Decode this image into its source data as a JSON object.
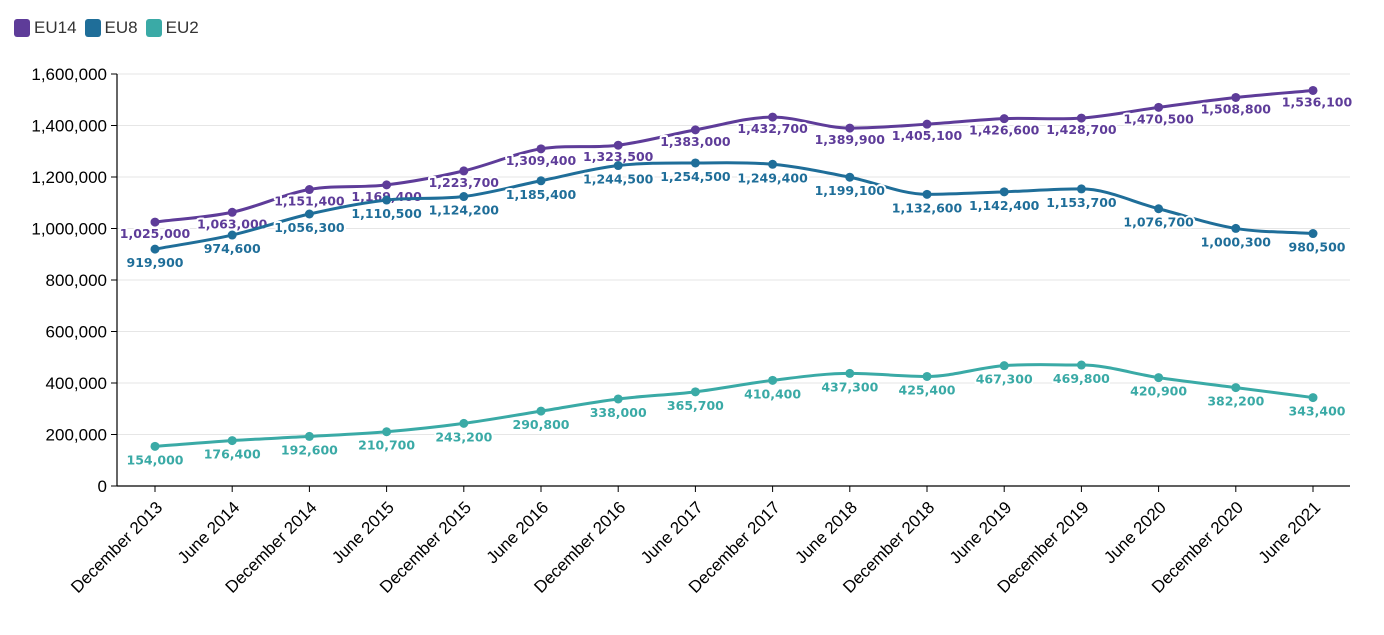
{
  "chart_data": {
    "type": "line",
    "categories": [
      "December 2013",
      "June 2014",
      "December 2014",
      "June 2015",
      "December 2015",
      "June 2016",
      "December 2016",
      "June 2017",
      "December 2017",
      "June 2018",
      "December 2018",
      "June 2019",
      "December 2019",
      "June 2020",
      "December 2020",
      "June 2021"
    ],
    "series": [
      {
        "name": "EU14",
        "color": "#5e3c99",
        "values": [
          1025000,
          1063000,
          1151400,
          1169400,
          1223700,
          1309400,
          1323500,
          1383000,
          1432700,
          1389900,
          1405100,
          1426600,
          1428700,
          1470500,
          1508800,
          1536100
        ],
        "labels": [
          "1,025,000",
          "1,063,000",
          "1,151,400",
          "1,169,400",
          "1,223,700",
          "1,309,400",
          "1,323,500",
          "1,383,000",
          "1,432,700",
          "1,389,900",
          "1,405,100",
          "1,426,600",
          "1,428,700",
          "1,470,500",
          "1,508,800",
          "1,536,100"
        ]
      },
      {
        "name": "EU8",
        "color": "#1f6e99",
        "values": [
          919900,
          974600,
          1056300,
          1110500,
          1124200,
          1185400,
          1244500,
          1254500,
          1249400,
          1199100,
          1132600,
          1142400,
          1153700,
          1076700,
          1000300,
          980500
        ],
        "labels": [
          "919,900",
          "974,600",
          "1,056,300",
          "1,110,500",
          "1,124,200",
          "1,185,400",
          "1,244,500",
          "1,254,500",
          "1,249,400",
          "1,199,100",
          "1,132,600",
          "1,142,400",
          "1,153,700",
          "1,076,700",
          "1,000,300",
          "980,500"
        ]
      },
      {
        "name": "EU2",
        "color": "#3aaaa6",
        "values": [
          154000,
          176400,
          192600,
          210700,
          243200,
          290800,
          338000,
          365700,
          410400,
          437300,
          425400,
          467300,
          469800,
          420900,
          382200,
          343400
        ],
        "labels": [
          "154,000",
          "176,400",
          "192,600",
          "210,700",
          "243,200",
          "290,800",
          "338,000",
          "365,700",
          "410,400",
          "437,300",
          "425,400",
          "467,300",
          "469,800",
          "420,900",
          "382,200",
          "343,400"
        ]
      }
    ],
    "yticks": [
      "0",
      "200,000",
      "400,000",
      "600,000",
      "800,000",
      "1,000,000",
      "1,200,000",
      "1,400,000",
      "1,600,000"
    ],
    "ylim": [
      0,
      1600000
    ],
    "grid": true,
    "legend_position": "top-left"
  }
}
